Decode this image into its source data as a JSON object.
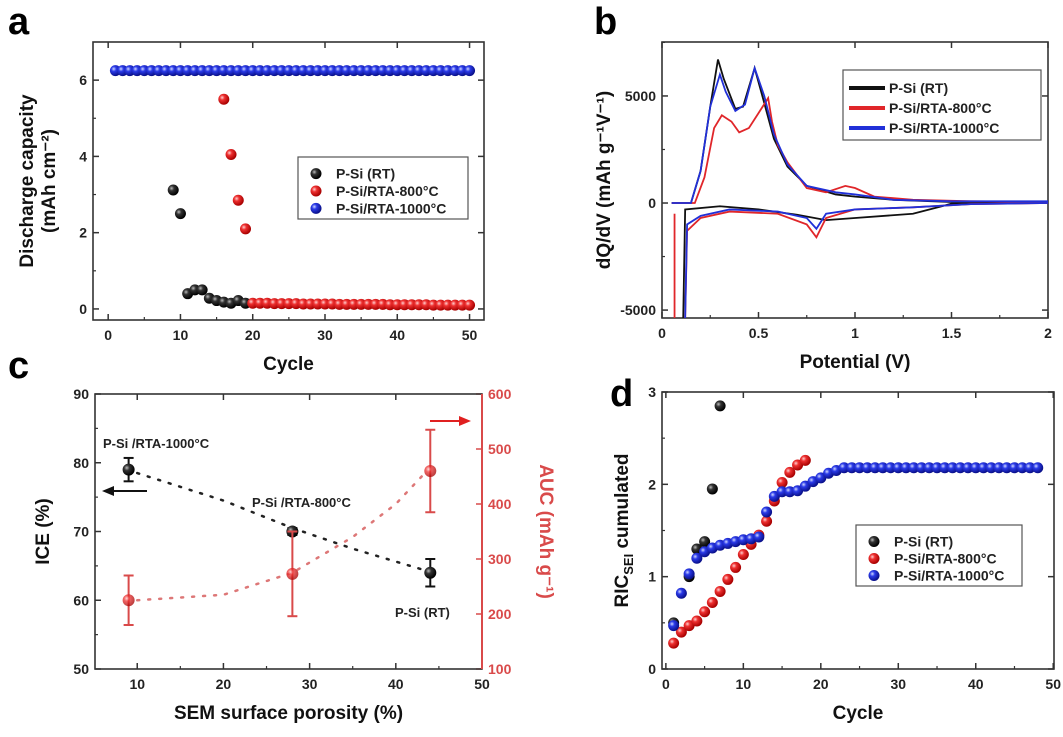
{
  "panel_letters": [
    "a",
    "b",
    "c",
    "d"
  ],
  "colors": {
    "black": "#111111",
    "red": "#e0262a",
    "blue": "#2130d8",
    "axis_red": "#d94a4a"
  },
  "chart_data": [
    {
      "type": "scatter",
      "xlabel": "Cycle",
      "ylabel": [
        "Discharge capacity",
        "(mAh cm⁻²)"
      ],
      "xlim": [
        -2.1,
        52
      ],
      "ylim": [
        -0.29,
        7
      ],
      "xticks": [
        0,
        10,
        20,
        30,
        40,
        50
      ],
      "yticks": [
        0,
        2,
        4,
        6
      ],
      "legend": "center-right",
      "series": [
        {
          "name": "P-Si (RT)",
          "color": "black",
          "points": [
            [
              9,
              3.12
            ],
            [
              10,
              2.5
            ],
            [
              11,
              0.4
            ],
            [
              12,
              0.5
            ],
            [
              13,
              0.5
            ],
            [
              14,
              0.28
            ],
            [
              15,
              0.22
            ],
            [
              16,
              0.18
            ],
            [
              17,
              0.15
            ],
            [
              18,
              0.22
            ],
            [
              19,
              0.15
            ]
          ]
        },
        {
          "name": "P-Si/RTA-800°C",
          "color": "red",
          "points": [
            [
              16,
              5.5
            ],
            [
              17,
              4.05
            ],
            [
              18,
              2.85
            ],
            [
              19,
              2.1
            ],
            [
              20,
              0.15
            ],
            [
              21,
              0.15
            ],
            [
              22,
              0.15
            ],
            [
              23,
              0.14
            ],
            [
              24,
              0.14
            ],
            [
              25,
              0.14
            ],
            [
              26,
              0.14
            ],
            [
              27,
              0.13
            ],
            [
              28,
              0.13
            ],
            [
              29,
              0.13
            ],
            [
              30,
              0.13
            ],
            [
              31,
              0.13
            ],
            [
              32,
              0.12
            ],
            [
              33,
              0.12
            ],
            [
              34,
              0.12
            ],
            [
              35,
              0.12
            ],
            [
              36,
              0.12
            ],
            [
              37,
              0.12
            ],
            [
              38,
              0.12
            ],
            [
              39,
              0.11
            ],
            [
              40,
              0.11
            ],
            [
              41,
              0.11
            ],
            [
              42,
              0.11
            ],
            [
              43,
              0.11
            ],
            [
              44,
              0.11
            ],
            [
              45,
              0.1
            ],
            [
              46,
              0.1
            ],
            [
              47,
              0.1
            ],
            [
              48,
              0.1
            ],
            [
              49,
              0.1
            ],
            [
              50,
              0.1
            ]
          ]
        },
        {
          "name": "P-Si/RTA-1000°C",
          "color": "blue",
          "points": "flat:1:50:6.25"
        }
      ]
    },
    {
      "type": "line",
      "xlabel": "Potential (V)",
      "ylabel": [
        "dQ/dV (mAh g⁻¹V⁻¹)"
      ],
      "xlim": [
        0,
        2
      ],
      "ylim": [
        -5370,
        7520
      ],
      "xticks": [
        0,
        0.5,
        1,
        1.5,
        2
      ],
      "yticks": [
        -5000,
        0,
        5000
      ],
      "legend": "top-right",
      "series": [
        {
          "name": "P-Si (RT)",
          "color": "black",
          "segments": [
            [
              [
                0.05,
                0
              ],
              [
                0.15,
                0
              ],
              [
                0.2,
                1500
              ],
              [
                0.25,
                4500
              ],
              [
                0.29,
                6700
              ],
              [
                0.32,
                5800
              ],
              [
                0.38,
                4400
              ],
              [
                0.42,
                4500
              ],
              [
                0.48,
                6300
              ],
              [
                0.52,
                5000
              ],
              [
                0.58,
                3000
              ],
              [
                0.65,
                1700
              ],
              [
                0.75,
                800
              ],
              [
                0.9,
                400
              ],
              [
                1.0,
                300
              ],
              [
                1.2,
                150
              ],
              [
                1.5,
                50
              ],
              [
                2.0,
                50
              ]
            ],
            [
              [
                2.0,
                0
              ],
              [
                1.5,
                -30
              ],
              [
                1.45,
                -150
              ],
              [
                1.3,
                -500
              ],
              [
                1.0,
                -700
              ],
              [
                0.85,
                -800
              ],
              [
                0.7,
                -550
              ],
              [
                0.5,
                -300
              ],
              [
                0.3,
                -150
              ],
              [
                0.12,
                -300
              ],
              [
                0.11,
                -5370
              ]
            ]
          ]
        },
        {
          "name": "P-Si/RTA-800°C",
          "color": "red",
          "segments": [
            [
              [
                0.05,
                0
              ],
              [
                0.17,
                0
              ],
              [
                0.22,
                1200
              ],
              [
                0.27,
                3500
              ],
              [
                0.31,
                4100
              ],
              [
                0.36,
                3800
              ],
              [
                0.4,
                3300
              ],
              [
                0.45,
                3500
              ],
              [
                0.5,
                4200
              ],
              [
                0.55,
                4900
              ],
              [
                0.57,
                3800
              ],
              [
                0.6,
                2700
              ],
              [
                0.65,
                1900
              ],
              [
                0.7,
                1300
              ],
              [
                0.75,
                700
              ],
              [
                0.85,
                500
              ],
              [
                0.95,
                800
              ],
              [
                1.0,
                700
              ],
              [
                1.1,
                300
              ],
              [
                1.3,
                150
              ],
              [
                1.6,
                80
              ],
              [
                2,
                50
              ]
            ],
            [
              [
                2,
                0
              ],
              [
                1.6,
                -50
              ],
              [
                1.3,
                -200
              ],
              [
                1.0,
                -300
              ],
              [
                0.85,
                -700
              ],
              [
                0.8,
                -1600
              ],
              [
                0.75,
                -1000
              ],
              [
                0.6,
                -500
              ],
              [
                0.35,
                -400
              ],
              [
                0.2,
                -700
              ],
              [
                0.13,
                -1300
              ],
              [
                0.12,
                -5370
              ]
            ],
            [
              [
                0.065,
                -500
              ],
              [
                0.065,
                -5370
              ]
            ]
          ]
        },
        {
          "name": "P-Si/RTA-1000°C",
          "color": "blue",
          "segments": [
            [
              [
                0.05,
                0
              ],
              [
                0.15,
                0
              ],
              [
                0.2,
                1500
              ],
              [
                0.25,
                4500
              ],
              [
                0.3,
                6000
              ],
              [
                0.33,
                5200
              ],
              [
                0.38,
                4300
              ],
              [
                0.43,
                4600
              ],
              [
                0.48,
                6300
              ],
              [
                0.53,
                5000
              ],
              [
                0.58,
                3200
              ],
              [
                0.65,
                1800
              ],
              [
                0.75,
                800
              ],
              [
                0.9,
                500
              ],
              [
                1.0,
                400
              ],
              [
                1.2,
                150
              ],
              [
                1.5,
                80
              ],
              [
                2,
                80
              ]
            ],
            [
              [
                2,
                0
              ],
              [
                1.6,
                -50
              ],
              [
                1.3,
                -200
              ],
              [
                1.0,
                -300
              ],
              [
                0.85,
                -500
              ],
              [
                0.8,
                -1200
              ],
              [
                0.75,
                -700
              ],
              [
                0.6,
                -400
              ],
              [
                0.35,
                -300
              ],
              [
                0.2,
                -600
              ],
              [
                0.13,
                -1000
              ],
              [
                0.12,
                -5370
              ]
            ]
          ]
        }
      ]
    },
    {
      "type": "scatter",
      "xlabel": "SEM surface porosity (%)",
      "ylabel": [
        "ICE (%)"
      ],
      "ylabel_right": "AUC (mAh g⁻¹)",
      "xlim": [
        5.1,
        50
      ],
      "ylim": [
        50,
        90
      ],
      "ylim_right": [
        100,
        600
      ],
      "xticks": [
        10,
        20,
        30,
        40,
        50
      ],
      "yticks": [
        50,
        60,
        70,
        80,
        90
      ],
      "yticks_right": [
        100,
        200,
        300,
        400,
        500,
        600
      ],
      "series": [
        {
          "name": "ICE",
          "color": "black",
          "axis": "left",
          "points": [
            [
              9,
              79,
              1.7
            ],
            [
              28,
              70,
              0.5
            ],
            [
              44,
              64,
              2
            ]
          ],
          "fit": [
            [
              10,
              78.5
            ],
            [
              20,
              74.5
            ],
            [
              28,
              70.5
            ],
            [
              35,
              67.5
            ],
            [
              43,
              64.5
            ]
          ]
        },
        {
          "name": "AUC",
          "color": "red",
          "axis": "right",
          "points": [
            [
              9,
              225,
              45
            ],
            [
              28,
              273,
              77
            ],
            [
              44,
              460,
              75
            ]
          ],
          "fit": [
            [
              10,
              225
            ],
            [
              20,
              235
            ],
            [
              28,
              275
            ],
            [
              35,
              340
            ],
            [
              40,
              400
            ],
            [
              43,
              450
            ]
          ]
        }
      ],
      "annotations": [
        "P-Si /RTA-1000°C",
        "P-Si /RTA-800°C",
        "P-Si (RT)"
      ]
    },
    {
      "type": "scatter",
      "xlabel": "Cycle",
      "ylabel": [
        "RIC",
        "SEI",
        " cumulated"
      ],
      "xlim": [
        -0.5,
        50.1
      ],
      "ylim": [
        0,
        3
      ],
      "xticks": [
        0,
        10,
        20,
        30,
        40,
        50
      ],
      "yticks": [
        0,
        1,
        2,
        3
      ],
      "legend": "center-right",
      "series": [
        {
          "name": "P-Si (RT)",
          "color": "black",
          "points": [
            [
              1,
              0.5
            ],
            [
              3,
              1.0
            ],
            [
              4,
              1.3
            ],
            [
              5,
              1.38
            ],
            [
              6,
              1.95
            ],
            [
              7,
              2.85
            ]
          ]
        },
        {
          "name": "P-Si/RTA-800°C",
          "color": "red",
          "points": [
            [
              1,
              0.28
            ],
            [
              2,
              0.4
            ],
            [
              3,
              0.47
            ],
            [
              4,
              0.52
            ],
            [
              5,
              0.62
            ],
            [
              6,
              0.72
            ],
            [
              7,
              0.84
            ],
            [
              8,
              0.97
            ],
            [
              9,
              1.1
            ],
            [
              10,
              1.24
            ],
            [
              11,
              1.35
            ],
            [
              12,
              1.45
            ],
            [
              13,
              1.6
            ],
            [
              14,
              1.82
            ],
            [
              15,
              2.02
            ],
            [
              16,
              2.13
            ],
            [
              17,
              2.21
            ],
            [
              18,
              2.26
            ]
          ]
        },
        {
          "name": "P-Si/RTA-1000°C",
          "color": "blue",
          "points": [
            [
              1,
              0.47
            ],
            [
              2,
              0.82
            ],
            [
              3,
              1.03
            ],
            [
              4,
              1.2
            ],
            [
              5,
              1.27
            ],
            [
              6,
              1.31
            ],
            [
              7,
              1.34
            ],
            [
              8,
              1.36
            ],
            [
              9,
              1.38
            ],
            [
              10,
              1.4
            ],
            [
              11,
              1.41
            ],
            [
              12,
              1.43
            ],
            [
              13,
              1.7
            ],
            [
              14,
              1.87
            ],
            [
              15,
              1.92
            ],
            [
              16,
              1.92
            ],
            [
              17,
              1.93
            ],
            [
              18,
              1.98
            ],
            [
              19,
              2.03
            ],
            [
              20,
              2.07
            ],
            [
              21,
              2.12
            ],
            [
              22,
              2.15
            ],
            [
              23,
              2.18
            ],
            [
              24,
              2.18
            ],
            [
              25,
              2.18
            ],
            [
              26,
              2.18
            ],
            [
              27,
              2.18
            ],
            [
              28,
              2.18
            ],
            [
              29,
              2.18
            ],
            [
              30,
              2.18
            ],
            [
              31,
              2.18
            ],
            [
              32,
              2.18
            ],
            [
              33,
              2.18
            ],
            [
              34,
              2.18
            ],
            [
              35,
              2.18
            ],
            [
              36,
              2.18
            ],
            [
              37,
              2.18
            ],
            [
              38,
              2.18
            ],
            [
              39,
              2.18
            ],
            [
              40,
              2.18
            ],
            [
              41,
              2.18
            ],
            [
              42,
              2.18
            ],
            [
              43,
              2.18
            ],
            [
              44,
              2.18
            ],
            [
              45,
              2.18
            ],
            [
              46,
              2.18
            ],
            [
              47,
              2.18
            ],
            [
              48,
              2.18
            ]
          ]
        }
      ]
    }
  ]
}
